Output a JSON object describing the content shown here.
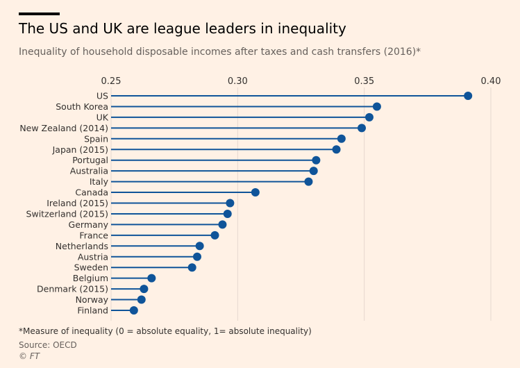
{
  "header": {
    "title": "The US and UK are league leaders in inequality",
    "subtitle": "Inequality of household disposable incomes after taxes and cash transfers (2016)*"
  },
  "footer": {
    "note": "*Measure of inequality (0 = absolute equality, 1= absolute inequality)",
    "source": "Source: OECD",
    "credit_symbol": "©",
    "credit_name": "FT"
  },
  "colors": {
    "background": "#fff1e5",
    "series": "#0f5499",
    "grid": "#e6d9ce",
    "text": "#33302e"
  },
  "chart_data": {
    "type": "lollipop",
    "orientation": "horizontal",
    "title": "The US and UK are league leaders in inequality",
    "subtitle": "Inequality of household disposable incomes after taxes and cash transfers (2016)*",
    "xlim": [
      0.25,
      0.4
    ],
    "x_ticks": [
      "0.25",
      "0.30",
      "0.35",
      "0.40"
    ],
    "x_tick_values": [
      0.25,
      0.3,
      0.35,
      0.4
    ],
    "x_axis_position": "top",
    "grid": true,
    "categories": [
      "US",
      "South Korea",
      "UK",
      "New Zealand (2014)",
      "Spain",
      "Japan (2015)",
      "Portugal",
      "Australia",
      "Italy",
      "Canada",
      "Ireland (2015)",
      "Switzerland (2015)",
      "Germany",
      "France",
      "Netherlands",
      "Austria",
      "Sweden",
      "Belgium",
      "Denmark (2015)",
      "Norway",
      "Finland"
    ],
    "values": [
      0.391,
      0.355,
      0.352,
      0.349,
      0.341,
      0.339,
      0.331,
      0.33,
      0.328,
      0.307,
      0.297,
      0.296,
      0.294,
      0.291,
      0.285,
      0.284,
      0.282,
      0.266,
      0.263,
      0.262,
      0.259
    ]
  }
}
